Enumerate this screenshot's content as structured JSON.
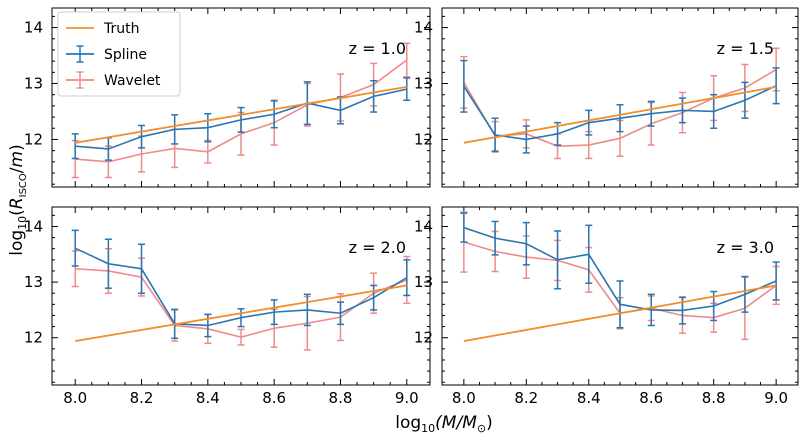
{
  "chart_data": {
    "type": "line",
    "xlabel": "log10(M/M⊙)",
    "ylabel": "log10(RISCO/m)",
    "xlim": [
      7.93,
      9.07
    ],
    "ylim": [
      11.15,
      14.35
    ],
    "x_ticks": [
      8.0,
      8.2,
      8.4,
      8.6,
      8.8,
      9.0
    ],
    "x_tick_labels": [
      "8.0",
      "8.2",
      "8.4",
      "8.6",
      "8.8",
      "9.0"
    ],
    "y_ticks": [
      12,
      13,
      14
    ],
    "y_tick_labels": [
      "12",
      "13",
      "14"
    ],
    "x": [
      8.0,
      8.1,
      8.2,
      8.3,
      8.4,
      8.5,
      8.6,
      8.7,
      8.8,
      8.9,
      9.0
    ],
    "colors": {
      "truth": "#f28e2b",
      "spline": "#2a75b0",
      "wavelet": "#f08a8a"
    },
    "legend": [
      "Truth",
      "Spline",
      "Wavelet"
    ],
    "legend_position": "top-left (first panel)",
    "panels": [
      {
        "label": "z = 1.0",
        "truth": [
          11.94,
          12.04,
          12.14,
          12.24,
          12.34,
          12.44,
          12.54,
          12.64,
          12.74,
          12.84,
          12.94
        ],
        "spline": {
          "values": [
            11.88,
            11.83,
            12.05,
            12.18,
            12.21,
            12.35,
            12.45,
            12.65,
            12.52,
            12.77,
            12.9
          ],
          "err": [
            0.22,
            0.2,
            0.2,
            0.26,
            0.25,
            0.22,
            0.24,
            0.38,
            0.24,
            0.28,
            0.2
          ]
        },
        "wavelet": {
          "values": [
            11.65,
            11.6,
            11.74,
            11.84,
            11.78,
            12.1,
            12.3,
            12.62,
            12.75,
            12.98,
            13.42
          ],
          "err": [
            0.33,
            0.28,
            0.32,
            0.34,
            0.2,
            0.38,
            0.4,
            0.38,
            0.42,
            0.38,
            0.3
          ]
        }
      },
      {
        "label": "z = 1.5",
        "truth": [
          11.94,
          12.04,
          12.14,
          12.24,
          12.34,
          12.44,
          12.54,
          12.64,
          12.74,
          12.84,
          12.94
        ],
        "spline": {
          "values": [
            12.95,
            12.08,
            12.0,
            12.1,
            12.3,
            12.38,
            12.46,
            12.52,
            12.5,
            12.7,
            12.96
          ],
          "err": [
            0.46,
            0.3,
            0.24,
            0.2,
            0.22,
            0.24,
            0.22,
            0.22,
            0.3,
            0.32,
            0.32
          ]
        },
        "wavelet": {
          "values": [
            13.02,
            12.06,
            12.1,
            11.88,
            11.9,
            12.02,
            12.28,
            12.48,
            12.74,
            12.92,
            13.25
          ],
          "err": [
            0.46,
            0.26,
            0.25,
            0.22,
            0.24,
            0.32,
            0.38,
            0.36,
            0.4,
            0.42,
            0.38
          ]
        }
      },
      {
        "label": "z = 2.0",
        "truth": [
          11.94,
          12.04,
          12.14,
          12.24,
          12.34,
          12.44,
          12.54,
          12.64,
          12.74,
          12.84,
          12.94
        ],
        "spline": {
          "values": [
            13.61,
            13.33,
            13.24,
            12.25,
            12.22,
            12.36,
            12.46,
            12.5,
            12.44,
            12.72,
            13.08
          ],
          "err": [
            0.32,
            0.44,
            0.44,
            0.26,
            0.2,
            0.16,
            0.22,
            0.28,
            0.2,
            0.22,
            0.32
          ]
        },
        "wavelet": {
          "values": [
            13.24,
            13.2,
            13.09,
            12.22,
            12.16,
            12.01,
            12.17,
            12.26,
            12.37,
            12.8,
            13.04
          ],
          "err": [
            0.32,
            0.4,
            0.34,
            0.28,
            0.26,
            0.14,
            0.34,
            0.48,
            0.42,
            0.36,
            0.42
          ]
        }
      },
      {
        "label": "z = 3.0",
        "truth": [
          11.94,
          12.04,
          12.14,
          12.24,
          12.34,
          12.44,
          12.54,
          12.64,
          12.74,
          12.84,
          12.94
        ],
        "spline": {
          "values": [
            13.98,
            13.79,
            13.69,
            13.4,
            13.5,
            12.6,
            12.5,
            12.49,
            12.57,
            12.78,
            13.02
          ],
          "err": [
            0.26,
            0.3,
            0.38,
            0.52,
            0.52,
            0.42,
            0.28,
            0.24,
            0.26,
            0.32,
            0.34
          ]
        },
        "wavelet": {
          "values": [
            13.72,
            13.55,
            13.45,
            13.39,
            13.22,
            12.44,
            12.53,
            12.4,
            12.36,
            12.53,
            12.94
          ],
          "err": [
            0.54,
            0.36,
            0.38,
            0.36,
            0.4,
            0.28,
            0.22,
            0.32,
            0.26,
            0.56,
            0.34
          ]
        }
      }
    ]
  }
}
